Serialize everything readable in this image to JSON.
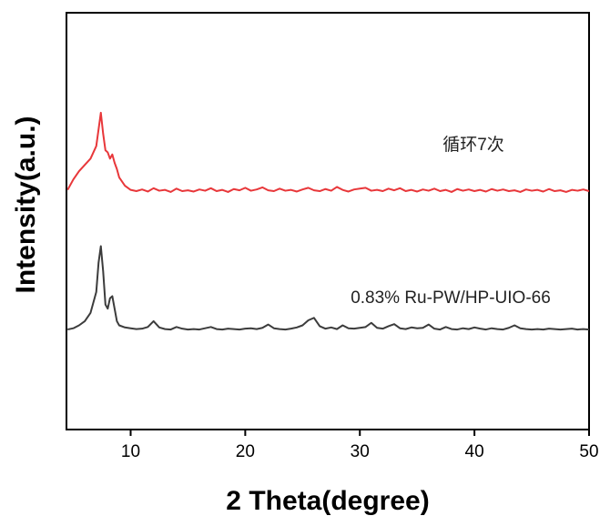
{
  "chart_data": {
    "type": "line",
    "xlabel": "2 Theta(degree)",
    "ylabel": "Intensity(a.u.)",
    "xlim": [
      4.4,
      50
    ],
    "xticks": [
      10,
      20,
      30,
      40,
      50
    ],
    "ylim": [
      0,
      100
    ],
    "x": [
      4.5,
      5,
      5.5,
      6,
      6.5,
      7,
      7.2,
      7.4,
      7.6,
      7.8,
      8,
      8.2,
      8.4,
      8.6,
      8.8,
      9,
      9.5,
      10,
      10.5,
      11,
      11.5,
      12,
      12.5,
      13,
      13.5,
      14,
      14.5,
      15,
      15.5,
      16,
      16.5,
      17,
      17.5,
      18,
      18.5,
      19,
      19.5,
      20,
      20.5,
      21,
      21.5,
      22,
      22.5,
      23,
      23.5,
      24,
      24.5,
      25,
      25.5,
      26,
      26.5,
      27,
      27.5,
      28,
      28.5,
      29,
      29.5,
      30,
      30.5,
      31,
      31.5,
      32,
      32.5,
      33,
      33.5,
      34,
      34.5,
      35,
      35.5,
      36,
      36.5,
      37,
      37.5,
      38,
      38.5,
      39,
      39.5,
      40,
      40.5,
      41,
      41.5,
      42,
      42.5,
      43,
      43.5,
      44,
      44.5,
      45,
      45.5,
      46,
      46.5,
      47,
      47.5,
      48,
      48.5,
      49,
      49.5,
      50
    ],
    "series": [
      {
        "name": "循环7次",
        "color": "#e8373a",
        "values": [
          57.5,
          60,
          62,
          63.5,
          65,
          68,
          72,
          76,
          71,
          67,
          66.5,
          65,
          66,
          64,
          62.5,
          60.5,
          58.5,
          57.5,
          57.2,
          57.6,
          57.1,
          57.9,
          57.3,
          57.5,
          57.0,
          57.8,
          57.2,
          57.4,
          57.1,
          57.6,
          57.3,
          57.9,
          57.2,
          57.5,
          57.0,
          57.7,
          57.4,
          58.0,
          57.3,
          57.6,
          58.1,
          57.4,
          57.2,
          57.8,
          57.3,
          57.5,
          57.1,
          57.6,
          58.0,
          57.4,
          57.2,
          57.7,
          57.3,
          58.2,
          57.5,
          57.1,
          57.6,
          57.8,
          58.0,
          57.3,
          57.5,
          57.2,
          57.8,
          57.4,
          57.9,
          57.2,
          57.5,
          57.1,
          57.6,
          57.3,
          57.8,
          57.2,
          57.5,
          57.0,
          57.7,
          57.3,
          57.6,
          57.2,
          57.5,
          57.1,
          57.7,
          57.3,
          57.6,
          57.2,
          57.4,
          57.0,
          57.6,
          57.3,
          57.5,
          57.1,
          57.7,
          57.2,
          57.4,
          57.0,
          57.5,
          57.3,
          57.6,
          57.2
        ]
      },
      {
        "name": "0.83% Ru-PW/HP-UIO-66",
        "color": "#3c3c3c",
        "values": [
          24,
          24.3,
          25,
          26,
          28,
          33,
          40,
          44,
          38,
          30,
          29,
          31.5,
          32,
          29,
          26,
          25,
          24.5,
          24.3,
          24.1,
          24.2,
          24.6,
          26.0,
          24.5,
          24.1,
          24.0,
          24.6,
          24.2,
          24.0,
          24.1,
          24.0,
          24.3,
          24.6,
          24.1,
          24.0,
          24.2,
          24.1,
          24.0,
          24.2,
          24.3,
          24.1,
          24.4,
          25.2,
          24.3,
          24.1,
          24.0,
          24.2,
          24.5,
          25.0,
          26.2,
          26.8,
          24.8,
          24.2,
          24.5,
          24.1,
          25.0,
          24.3,
          24.2,
          24.4,
          24.6,
          25.6,
          24.4,
          24.2,
          24.8,
          25.3,
          24.3,
          24.1,
          24.5,
          24.3,
          24.4,
          25.2,
          24.2,
          24.0,
          24.6,
          24.1,
          24.0,
          24.3,
          24.1,
          24.5,
          24.2,
          24.0,
          24.3,
          24.1,
          24.0,
          24.4,
          25.0,
          24.3,
          24.1,
          24.0,
          24.1,
          24.0,
          24.2,
          24.1,
          24.0,
          24.1,
          24.2,
          24.0,
          24.1,
          24.0
        ]
      }
    ]
  }
}
